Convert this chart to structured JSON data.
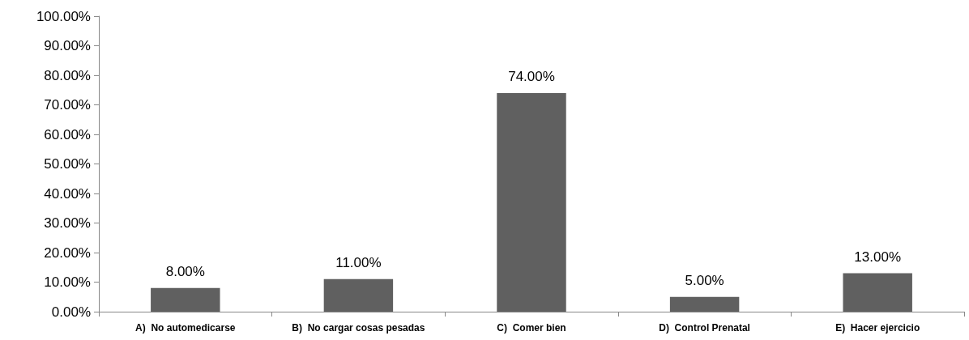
{
  "chart_data": {
    "type": "bar",
    "categories": [
      "A)  No automedicarse",
      "B)  No cargar cosas pesadas",
      "C)  Comer bien",
      "D)  Control Prenatal",
      "E)  Hacer ejercicio"
    ],
    "values": [
      8,
      11,
      74,
      5,
      13
    ],
    "value_labels": [
      "8.00%",
      "11.00%",
      "74.00%",
      "5.00%",
      "13.00%"
    ],
    "color": "#606060",
    "ylim": [
      0,
      100
    ],
    "yticks": [
      {
        "value": 0,
        "label": "0.00%"
      },
      {
        "value": 10,
        "label": "10.00%"
      },
      {
        "value": 20,
        "label": "20.00%"
      },
      {
        "value": 30,
        "label": "30.00%"
      },
      {
        "value": 40,
        "label": "40.00%"
      },
      {
        "value": 50,
        "label": "50.00%"
      },
      {
        "value": 60,
        "label": "60.00%"
      },
      {
        "value": 70,
        "label": "70.00%"
      },
      {
        "value": 80,
        "label": "80.00%"
      },
      {
        "value": 90,
        "label": "90.00%"
      },
      {
        "value": 100,
        "label": "100.00%"
      }
    ],
    "grid": false
  }
}
